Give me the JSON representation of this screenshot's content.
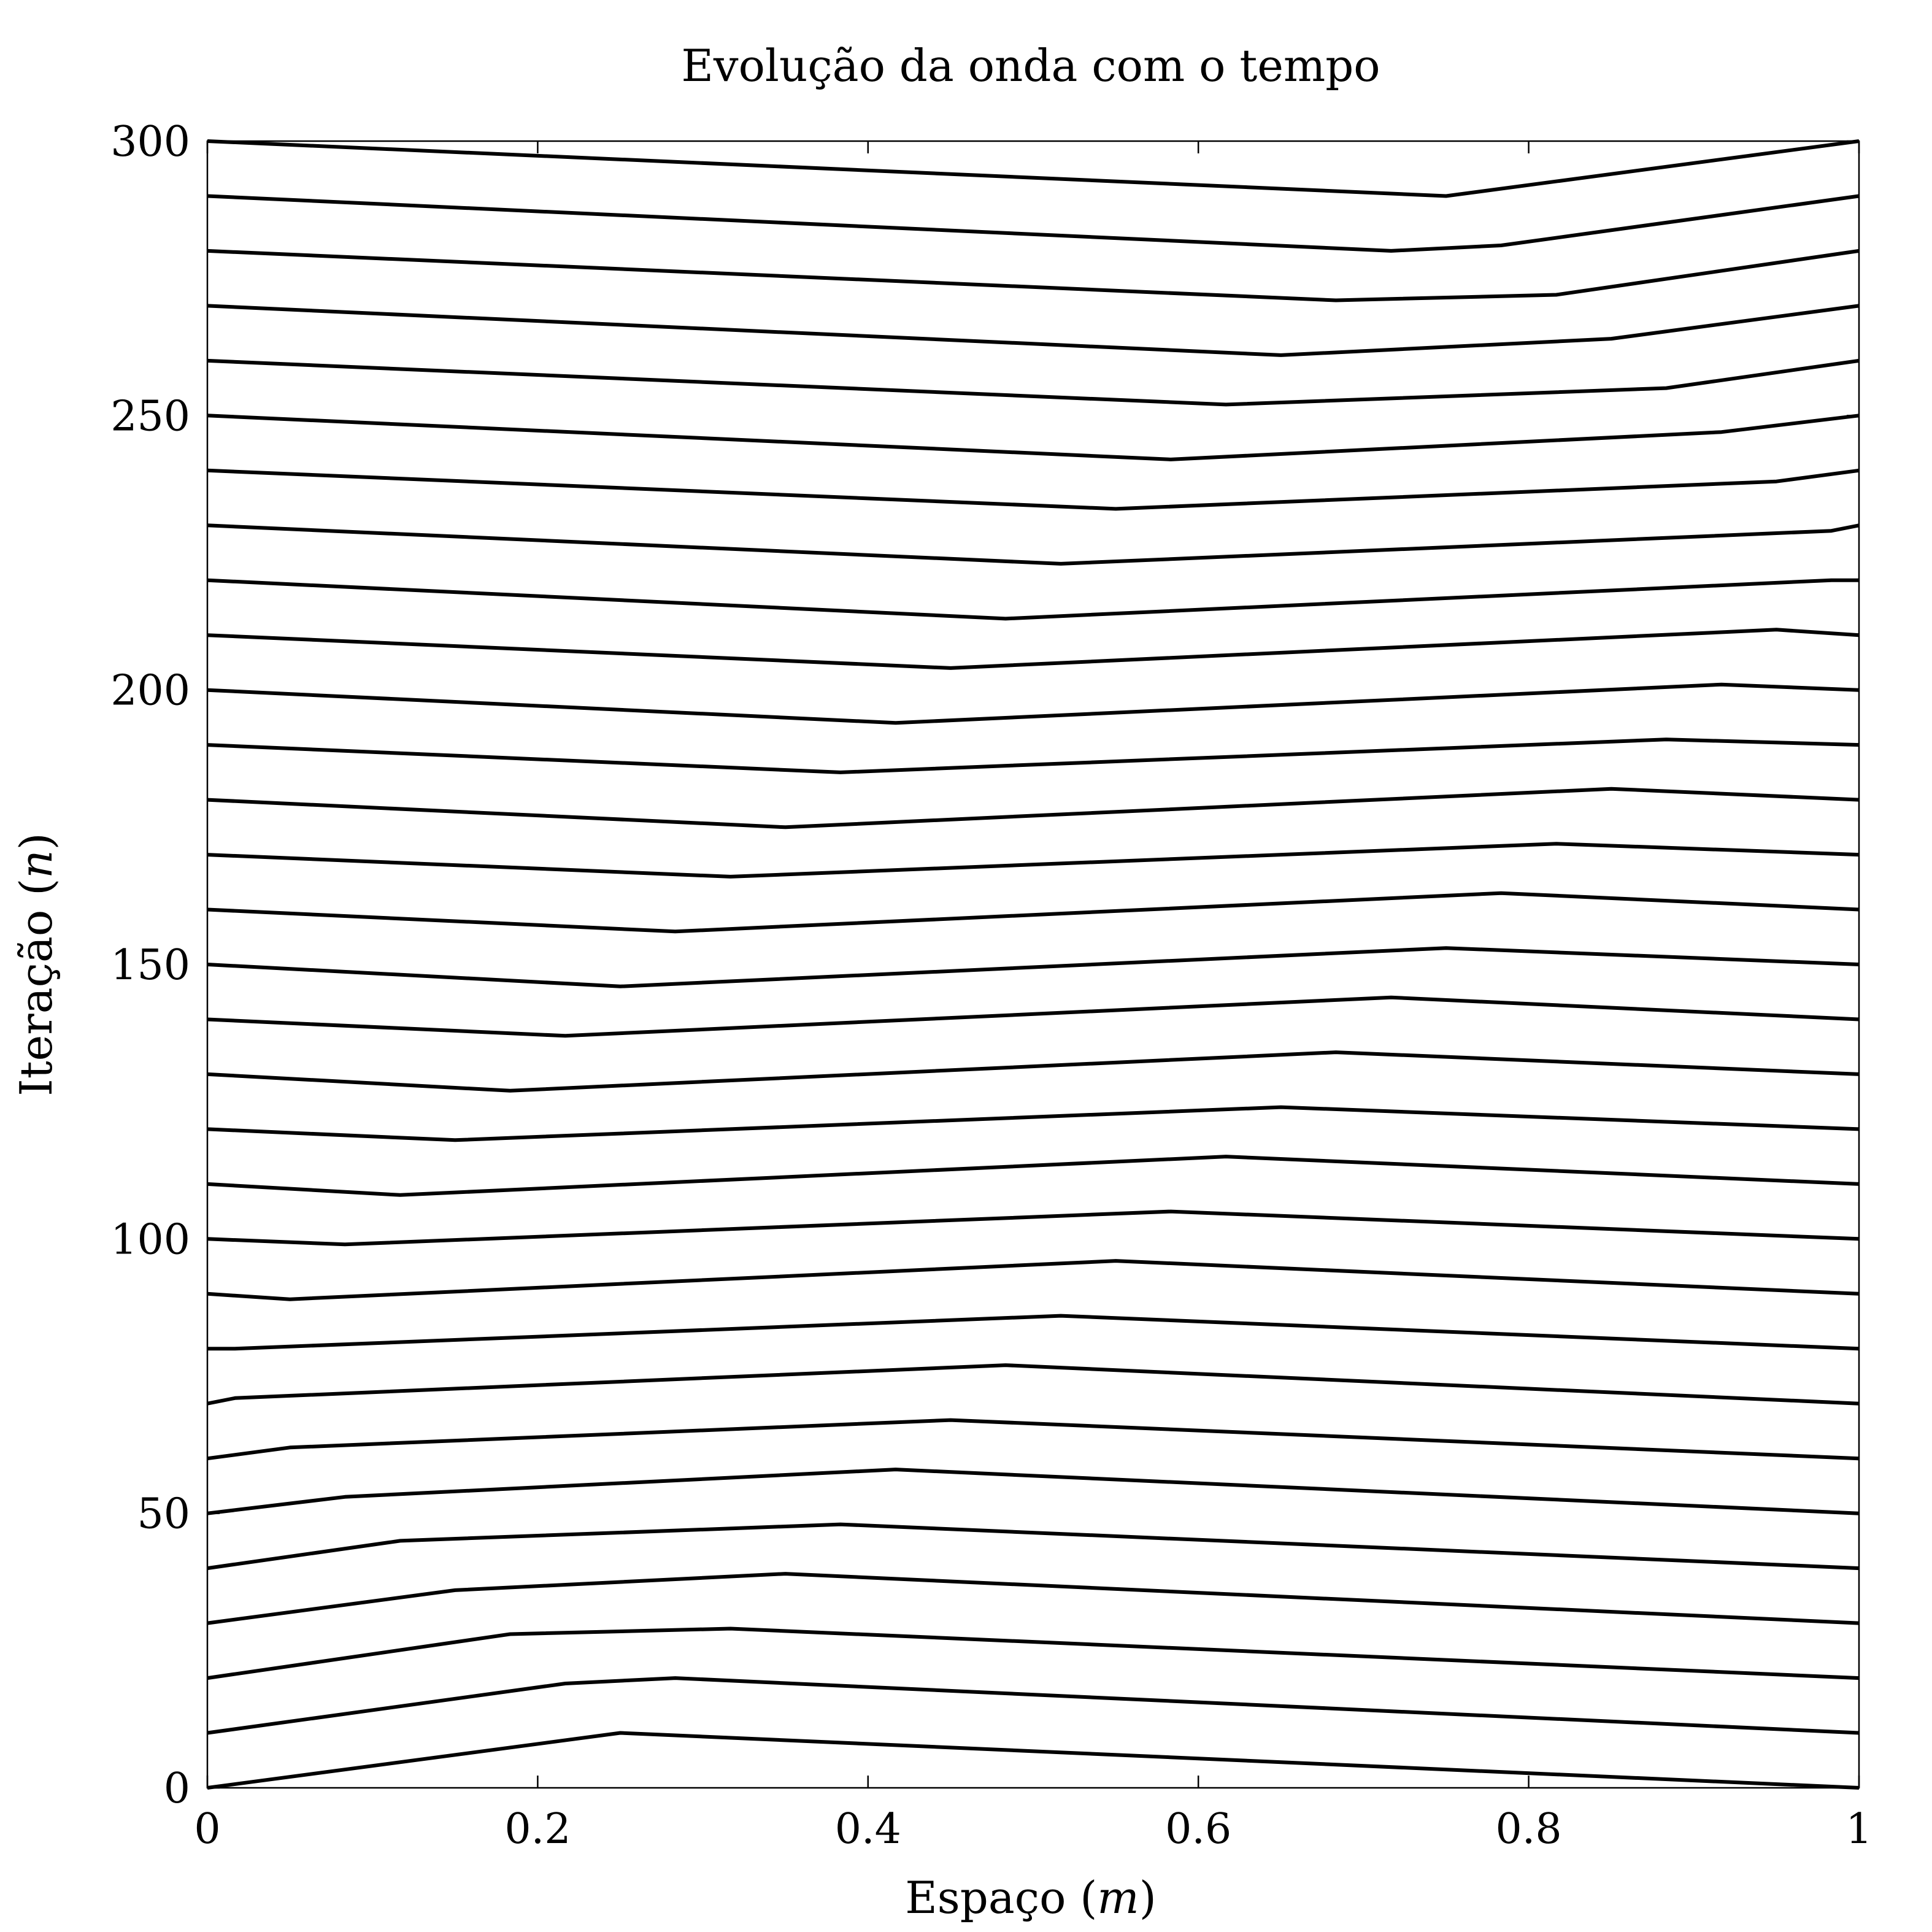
{
  "chart_data": {
    "type": "line",
    "title": "Evolução da onda com o tempo",
    "xlabel": "Espaço",
    "xlabel_unit": "m",
    "ylabel": "Iteração",
    "ylabel_unit": "n",
    "xlim": [
      0,
      1
    ],
    "ylim": [
      0,
      300
    ],
    "xticks": [
      {
        "value": 0,
        "label": "0"
      },
      {
        "value": 0.2,
        "label": "0.2"
      },
      {
        "value": 0.4,
        "label": "0.4"
      },
      {
        "value": 0.6,
        "label": "0.6"
      },
      {
        "value": 0.8,
        "label": "0.8"
      },
      {
        "value": 1,
        "label": "1"
      }
    ],
    "yticks": [
      {
        "value": 0,
        "label": "0"
      },
      {
        "value": 50,
        "label": "50"
      },
      {
        "value": 100,
        "label": "100"
      },
      {
        "value": 150,
        "label": "150"
      },
      {
        "value": 200,
        "label": "200"
      },
      {
        "value": 250,
        "label": "250"
      },
      {
        "value": 300,
        "label": "300"
      }
    ],
    "grid": false,
    "legend": "none",
    "line_color": "#000000",
    "series": [
      {
        "x": [
          0,
          0.25,
          1
        ],
        "y": [
          0,
          10,
          0
        ]
      },
      {
        "x": [
          0,
          0.2167,
          0.2833,
          1
        ],
        "y": [
          10,
          19,
          20,
          10
        ]
      },
      {
        "x": [
          0,
          0.1833,
          0.3167,
          1
        ],
        "y": [
          20,
          28,
          29,
          20
        ]
      },
      {
        "x": [
          0,
          0.15,
          0.35,
          1
        ],
        "y": [
          30,
          36,
          39,
          30
        ]
      },
      {
        "x": [
          0,
          0.1167,
          0.3833,
          1
        ],
        "y": [
          40,
          45,
          48,
          40
        ]
      },
      {
        "x": [
          0,
          0.0833,
          0.4167,
          1
        ],
        "y": [
          50,
          53,
          58,
          50
        ]
      },
      {
        "x": [
          0,
          0.05,
          0.45,
          1
        ],
        "y": [
          60,
          62,
          67,
          60
        ]
      },
      {
        "x": [
          0,
          0.0167,
          0.4833,
          1
        ],
        "y": [
          70,
          71,
          77,
          70
        ]
      },
      {
        "x": [
          0,
          0.0167,
          0.5167,
          1
        ],
        "y": [
          80,
          80,
          86,
          80
        ]
      },
      {
        "x": [
          0,
          0.05,
          0.55,
          1
        ],
        "y": [
          90,
          89,
          96,
          90
        ]
      },
      {
        "x": [
          0,
          0.0833,
          0.5833,
          1
        ],
        "y": [
          100,
          99,
          105,
          100
        ]
      },
      {
        "x": [
          0,
          0.1167,
          0.6167,
          1
        ],
        "y": [
          110,
          108,
          115,
          110
        ]
      },
      {
        "x": [
          0,
          0.15,
          0.65,
          1
        ],
        "y": [
          120,
          118,
          124,
          120
        ]
      },
      {
        "x": [
          0,
          0.1833,
          0.6833,
          1
        ],
        "y": [
          130,
          127,
          134,
          130
        ]
      },
      {
        "x": [
          0,
          0.2167,
          0.7167,
          1
        ],
        "y": [
          140,
          137,
          144,
          140
        ]
      },
      {
        "x": [
          0,
          0.25,
          0.75,
          1
        ],
        "y": [
          150,
          146,
          153,
          150
        ]
      },
      {
        "x": [
          0,
          0.2833,
          0.7833,
          1
        ],
        "y": [
          160,
          156,
          163,
          160
        ]
      },
      {
        "x": [
          0,
          0.3167,
          0.8167,
          1
        ],
        "y": [
          170,
          166,
          172,
          170
        ]
      },
      {
        "x": [
          0,
          0.35,
          0.85,
          1
        ],
        "y": [
          180,
          175,
          182,
          180
        ]
      },
      {
        "x": [
          0,
          0.3833,
          0.8833,
          1
        ],
        "y": [
          190,
          185,
          191,
          190
        ]
      },
      {
        "x": [
          0,
          0.4167,
          0.9167,
          1
        ],
        "y": [
          200,
          194,
          201,
          200
        ]
      },
      {
        "x": [
          0,
          0.45,
          0.95,
          1
        ],
        "y": [
          210,
          204,
          211,
          210
        ]
      },
      {
        "x": [
          0,
          0.4833,
          0.9833,
          1
        ],
        "y": [
          220,
          213,
          220,
          220
        ]
      },
      {
        "x": [
          0,
          0.5167,
          0.9833,
          1
        ],
        "y": [
          230,
          223,
          229,
          230
        ]
      },
      {
        "x": [
          0,
          0.55,
          0.95,
          1
        ],
        "y": [
          240,
          233,
          238,
          240
        ]
      },
      {
        "x": [
          0,
          0.5833,
          0.9167,
          1
        ],
        "y": [
          250,
          242,
          247,
          250
        ]
      },
      {
        "x": [
          0,
          0.6167,
          0.8833,
          1
        ],
        "y": [
          260,
          252,
          255,
          260
        ]
      },
      {
        "x": [
          0,
          0.65,
          0.85,
          1
        ],
        "y": [
          270,
          261,
          264,
          270
        ]
      },
      {
        "x": [
          0,
          0.6833,
          0.8167,
          1
        ],
        "y": [
          280,
          271,
          272,
          280
        ]
      },
      {
        "x": [
          0,
          0.7167,
          0.7833,
          1
        ],
        "y": [
          290,
          280,
          281,
          290
        ]
      },
      {
        "x": [
          0,
          0.75,
          1
        ],
        "y": [
          300,
          290,
          300
        ]
      }
    ]
  }
}
